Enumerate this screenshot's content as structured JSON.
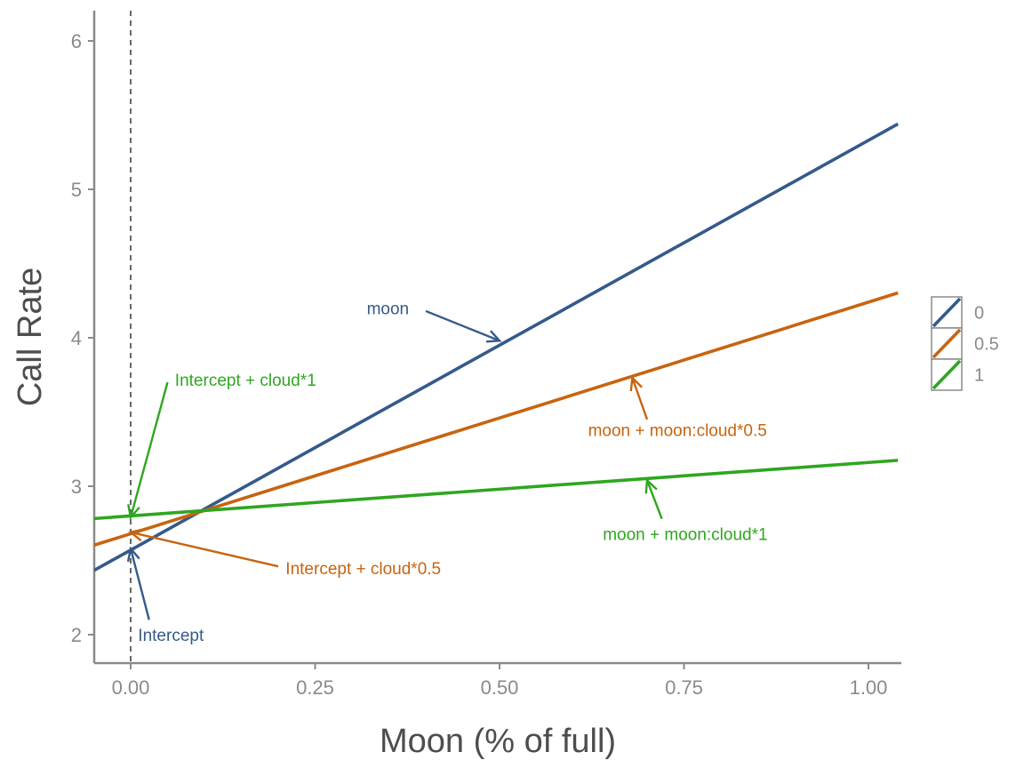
{
  "chart_data": {
    "type": "line",
    "xlabel": "Moon (% of full)",
    "ylabel": "Call Rate",
    "xlim": [
      -0.05,
      1.04
    ],
    "ylim": [
      1.8,
      6.2
    ],
    "x_ticks": [
      {
        "value": 0,
        "label": "0.00"
      },
      {
        "value": 0.25,
        "label": "0.25"
      },
      {
        "value": 0.5,
        "label": "0.50"
      },
      {
        "value": 0.75,
        "label": "0.75"
      },
      {
        "value": 1.0,
        "label": "1.00"
      }
    ],
    "y_ticks": [
      {
        "value": 2,
        "label": "2"
      },
      {
        "value": 3,
        "label": "3"
      },
      {
        "value": 4,
        "label": "4"
      },
      {
        "value": 5,
        "label": "5"
      },
      {
        "value": 6,
        "label": "6"
      }
    ],
    "grid": false,
    "vline": {
      "x": 0,
      "style": "dashed"
    },
    "legend_position": "right",
    "series": [
      {
        "name": "0",
        "color": "#355a8a",
        "intercept": 2.57,
        "slope": 2.76
      },
      {
        "name": "0.5",
        "color": "#c8640f",
        "intercept": 2.68,
        "slope": 1.56
      },
      {
        "name": "1",
        "color": "#2fa620",
        "intercept": 2.8,
        "slope": 0.36
      }
    ],
    "annotations": [
      {
        "text": "moon",
        "color": "#355a8a",
        "text_x": 0.32,
        "text_y": 4.2,
        "arrow_from": [
          0.4,
          4.18
        ],
        "arrow_to": [
          0.5,
          3.98
        ],
        "anchor": "start"
      },
      {
        "text": "Intercept + cloud*1",
        "color": "#2fa620",
        "text_x": 0.06,
        "text_y": 3.72,
        "arrow_from": [
          0.05,
          3.7
        ],
        "arrow_to": [
          0.0,
          2.79
        ],
        "anchor": "start"
      },
      {
        "text": "moon + moon:cloud*0.5",
        "color": "#c8640f",
        "text_x": 0.62,
        "text_y": 3.38,
        "arrow_from": [
          0.7,
          3.45
        ],
        "arrow_to": [
          0.68,
          3.73
        ],
        "anchor": "start"
      },
      {
        "text": "moon + moon:cloud*1",
        "color": "#2fa620",
        "text_x": 0.64,
        "text_y": 2.68,
        "arrow_from": [
          0.72,
          2.78
        ],
        "arrow_to": [
          0.7,
          3.04
        ],
        "anchor": "start"
      },
      {
        "text": "Intercept + cloud*0.5",
        "color": "#c8640f",
        "text_x": 0.21,
        "text_y": 2.45,
        "arrow_from": [
          0.2,
          2.46
        ],
        "arrow_to": [
          0.0,
          2.69
        ],
        "anchor": "start"
      },
      {
        "text": "Intercept",
        "color": "#355a8a",
        "text_x": 0.01,
        "text_y": 2.0,
        "arrow_from": [
          0.025,
          2.1
        ],
        "arrow_to": [
          0.0,
          2.58
        ],
        "anchor": "start"
      }
    ]
  }
}
